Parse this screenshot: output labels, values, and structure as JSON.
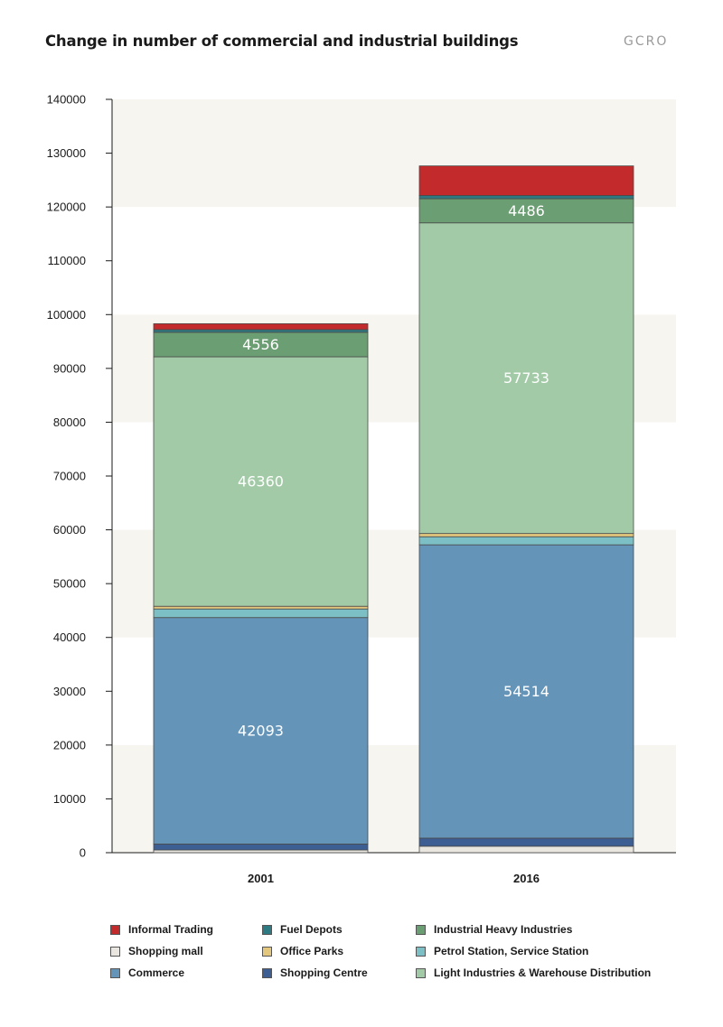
{
  "title": "Change in number of commercial and industrial buildings",
  "logo_text": "GCRO",
  "chart_data": {
    "type": "bar",
    "stacked": true,
    "categories": [
      "2001",
      "2016"
    ],
    "ylim": [
      0,
      140000
    ],
    "yticks": [
      0,
      10000,
      20000,
      30000,
      40000,
      50000,
      60000,
      70000,
      80000,
      90000,
      100000,
      110000,
      120000,
      130000,
      140000
    ],
    "series": [
      {
        "name": "Shopping mall",
        "color": "#e8e6df",
        "values": [
          500,
          1200
        ]
      },
      {
        "name": "Shopping Centre",
        "color": "#3d5e93",
        "values": [
          1100,
          1500
        ]
      },
      {
        "name": "Commerce",
        "color": "#6594b9",
        "values": [
          42093,
          54514
        ]
      },
      {
        "name": "Petrol Station, Service Station",
        "color": "#7cc0c5",
        "values": [
          1600,
          1500
        ]
      },
      {
        "name": "Office Parks",
        "color": "#e3c77c",
        "values": [
          500,
          600
        ]
      },
      {
        "name": "Light Industries & Warehouse Distribution",
        "color": "#a3caa7",
        "values": [
          46360,
          57733
        ]
      },
      {
        "name": "Industrial Heavy Industries",
        "color": "#6b9e72",
        "values": [
          4556,
          4486
        ]
      },
      {
        "name": "Fuel Depots",
        "color": "#2e7a83",
        "values": [
          500,
          600
        ]
      },
      {
        "name": "Informal Trading",
        "color": "#c32a2b",
        "values": [
          1100,
          5500
        ]
      }
    ],
    "data_labels": [
      {
        "series": "Commerce",
        "values": [
          "42093",
          "54514"
        ]
      },
      {
        "series": "Light Industries & Warehouse Distribution",
        "values": [
          "46360",
          "57733"
        ]
      },
      {
        "series": "Industrial Heavy Industries",
        "values": [
          "4556",
          "4486"
        ]
      }
    ],
    "legend": {
      "placement": "bottom",
      "entries": [
        {
          "label": "Informal Trading",
          "color": "#c32a2b"
        },
        {
          "label": "Fuel Depots",
          "color": "#2e7a83"
        },
        {
          "label": "Industrial Heavy Industries",
          "color": "#6b9e72"
        },
        {
          "label": "Shopping mall",
          "color": "#e8e6df"
        },
        {
          "label": "Office Parks",
          "color": "#e3c77c"
        },
        {
          "label": "Petrol Station, Service Station",
          "color": "#7cc0c5"
        },
        {
          "label": "Commerce",
          "color": "#6594b9"
        },
        {
          "label": "Shopping Centre",
          "color": "#3d5e93"
        },
        {
          "label": "Light Industries  & Warehouse Distribution",
          "color": "#a3caa7"
        }
      ]
    },
    "band_colors": [
      "#f7f5f0",
      "#ffffff"
    ],
    "grid": false
  }
}
